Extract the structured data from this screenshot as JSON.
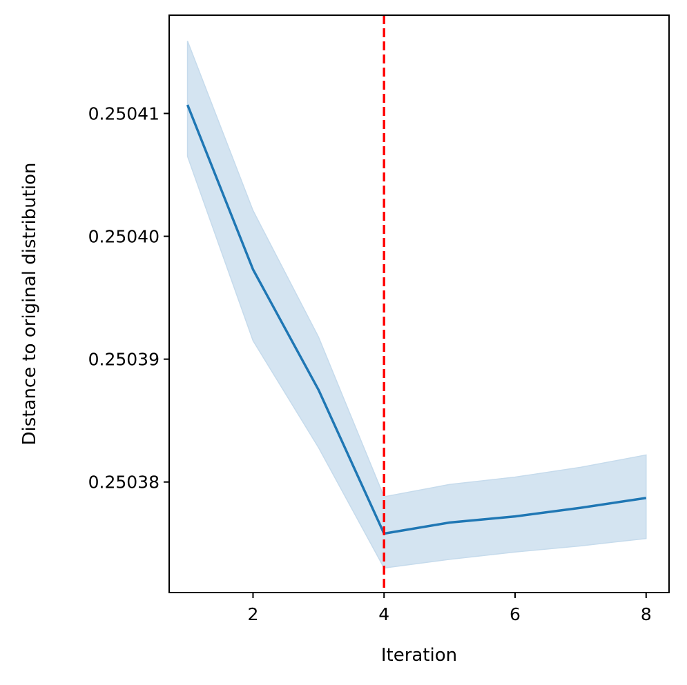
{
  "chart_data": {
    "type": "line",
    "title": "",
    "xlabel": "Iteration",
    "ylabel": "Distance to original distribution",
    "xlim": [
      0.72,
      8.35
    ],
    "ylim": [
      0.250371,
      0.250418
    ],
    "xticks": [
      2,
      4,
      6,
      8
    ],
    "yticks": [
      0.25038,
      0.25039,
      0.2504,
      0.25041
    ],
    "ytick_labels": [
      "0.25038",
      "0.25039",
      "0.25040",
      "0.25041"
    ],
    "grid": false,
    "legend": "none",
    "series": [
      {
        "x": [
          1,
          2,
          3,
          4,
          5,
          6,
          7,
          8
        ],
        "y": [
          0.2504107,
          0.2503973,
          0.2503875,
          0.2503758,
          0.2503767,
          0.2503772,
          0.2503779,
          0.2503787
        ],
        "lower": [
          0.2504065,
          0.2503915,
          0.2503828,
          0.250373,
          0.2503737,
          0.2503743,
          0.2503748,
          0.2503754
        ],
        "upper": [
          0.2504159,
          0.2504021,
          0.2503918,
          0.2503788,
          0.2503798,
          0.2503804,
          0.2503812,
          0.2503822
        ]
      }
    ],
    "vline": {
      "x": 4,
      "style": "dashed"
    },
    "colors": {
      "line": "#1f77b4",
      "band": "#c6dbec",
      "vline": "#ff0000"
    }
  }
}
